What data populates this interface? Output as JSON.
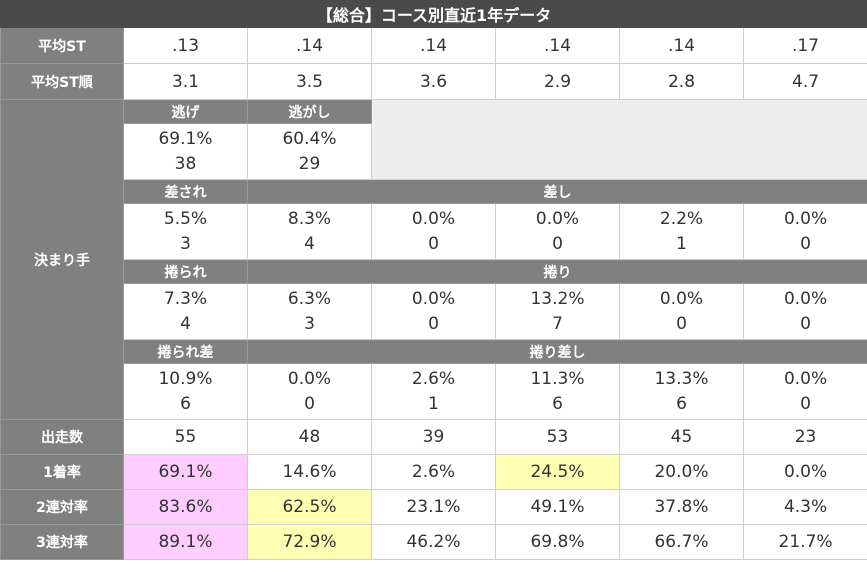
{
  "title": "【総合】コース別直近1年データ",
  "headers": {
    "avg_st": "平均ST",
    "avg_st_rank": "平均ST順",
    "kimarite": "決まり手",
    "starts": "出走数",
    "win1": "1着率",
    "ren2": "2連対率",
    "ren3": "3連対率"
  },
  "avg_st": [
    ".13",
    ".14",
    ".14",
    ".14",
    ".14",
    ".17"
  ],
  "avg_st_rank": [
    "3.1",
    "3.5",
    "3.6",
    "2.9",
    "2.8",
    "4.7"
  ],
  "kimarite": {
    "nige_label": "逃げ",
    "nigashi_label": "逃がし",
    "nige": {
      "pct": "69.1%",
      "count": "38"
    },
    "nigashi": {
      "pct": "60.4%",
      "count": "29"
    },
    "sasare_label": "差され",
    "sashi_label": "差し",
    "sashi_row": [
      {
        "pct": "5.5%",
        "count": "3"
      },
      {
        "pct": "8.3%",
        "count": "4"
      },
      {
        "pct": "0.0%",
        "count": "0"
      },
      {
        "pct": "0.0%",
        "count": "0"
      },
      {
        "pct": "2.2%",
        "count": "1"
      },
      {
        "pct": "0.0%",
        "count": "0"
      }
    ],
    "makurare_label": "捲られ",
    "makuri_label": "捲り",
    "makuri_row": [
      {
        "pct": "7.3%",
        "count": "4"
      },
      {
        "pct": "6.3%",
        "count": "3"
      },
      {
        "pct": "0.0%",
        "count": "0"
      },
      {
        "pct": "13.2%",
        "count": "7"
      },
      {
        "pct": "0.0%",
        "count": "0"
      },
      {
        "pct": "0.0%",
        "count": "0"
      }
    ],
    "makurare_sashi_label": "捲られ差",
    "makuri_sashi_label": "捲り差し",
    "makuri_sashi_row": [
      {
        "pct": "10.9%",
        "count": "6"
      },
      {
        "pct": "0.0%",
        "count": "0"
      },
      {
        "pct": "2.6%",
        "count": "1"
      },
      {
        "pct": "11.3%",
        "count": "6"
      },
      {
        "pct": "13.3%",
        "count": "6"
      },
      {
        "pct": "0.0%",
        "count": "0"
      }
    ]
  },
  "starts": [
    "55",
    "48",
    "39",
    "53",
    "45",
    "23"
  ],
  "win1": [
    "69.1%",
    "14.6%",
    "2.6%",
    "24.5%",
    "20.0%",
    "0.0%"
  ],
  "ren2": [
    "83.6%",
    "62.5%",
    "23.1%",
    "49.1%",
    "37.8%",
    "4.3%"
  ],
  "ren3": [
    "89.1%",
    "72.9%",
    "46.2%",
    "69.8%",
    "66.7%",
    "21.7%"
  ],
  "highlight_colors": {
    "pink": "#ffccff",
    "yellow": "#ffffb3"
  }
}
